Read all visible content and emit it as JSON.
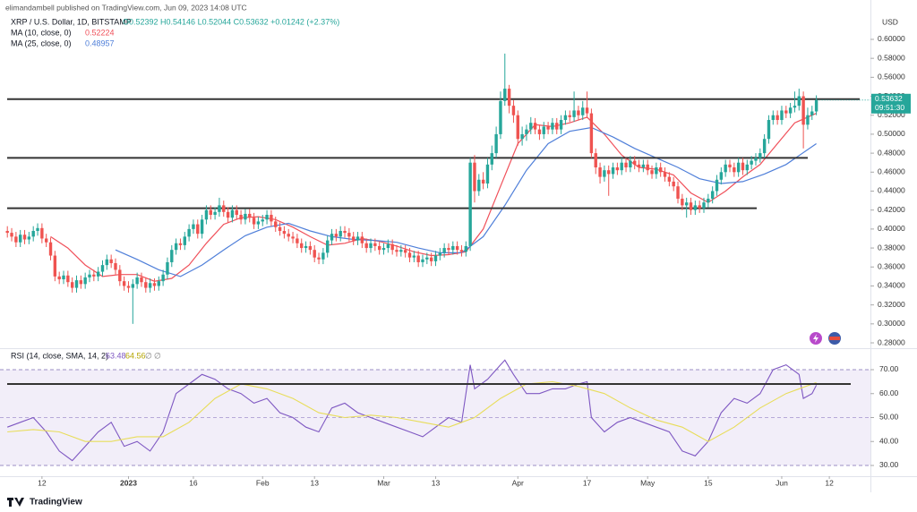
{
  "chart_data": {
    "type": "candlestick",
    "publisher": "elimandambell published on TradingView.com, Jun 09, 2023 14:08 UTC",
    "title": "XRP / U.S. Dollar, 1D, BITSTAMP",
    "ohlc_text": "O0.52392 H0.54146 L0.52044 C0.53632 +0.01242 (+2.37%)",
    "currency": "USD",
    "last_price": "0.53632",
    "countdown": "09:51:30",
    "footer": "TradingView",
    "up_color": "#26a69a",
    "down_color": "#ef5350",
    "xlim": [
      -1.7,
      199.5
    ],
    "xticks": [
      {
        "value": 8,
        "label": "12"
      },
      {
        "value": 28,
        "label": "2023"
      },
      {
        "value": 43,
        "label": "16"
      },
      {
        "value": 59,
        "label": "Feb"
      },
      {
        "value": 71,
        "label": "13"
      },
      {
        "value": 87,
        "label": "Mar"
      },
      {
        "value": 99,
        "label": "13"
      },
      {
        "value": 118,
        "label": "Apr"
      },
      {
        "value": 134,
        "label": "17"
      },
      {
        "value": 148,
        "label": "May"
      },
      {
        "value": 162,
        "label": "15"
      },
      {
        "value": 179,
        "label": "Jun"
      },
      {
        "value": 190,
        "label": "12"
      }
    ],
    "ylim": [
      0.2753,
      0.6415
    ],
    "yticks": [
      {
        "value": 0.28,
        "label": "0.28000"
      },
      {
        "value": 0.3,
        "label": "0.30000"
      },
      {
        "value": 0.32,
        "label": "0.32000"
      },
      {
        "value": 0.34,
        "label": "0.34000"
      },
      {
        "value": 0.36,
        "label": "0.36000"
      },
      {
        "value": 0.38,
        "label": "0.38000"
      },
      {
        "value": 0.4,
        "label": "0.40000"
      },
      {
        "value": 0.42,
        "label": "0.42000"
      },
      {
        "value": 0.44,
        "label": "0.44000"
      },
      {
        "value": 0.46,
        "label": "0.46000"
      },
      {
        "value": 0.48,
        "label": "0.48000"
      },
      {
        "value": 0.5,
        "label": "0.50000"
      },
      {
        "value": 0.52,
        "label": "0.52000"
      },
      {
        "value": 0.54,
        "label": "0.54000"
      },
      {
        "value": 0.56,
        "label": "0.56000"
      },
      {
        "value": 0.58,
        "label": "0.58000"
      },
      {
        "value": 0.6,
        "label": "0.60000"
      }
    ],
    "open": [
      0.398,
      0.396,
      0.392,
      0.386,
      0.394,
      0.389,
      0.392,
      0.398,
      0.401,
      0.39,
      0.386,
      0.372,
      0.35,
      0.347,
      0.351,
      0.344,
      0.338,
      0.346,
      0.342,
      0.349,
      0.352,
      0.35,
      0.355,
      0.362,
      0.368,
      0.364,
      0.357,
      0.345,
      0.34,
      0.338,
      0.342,
      0.349,
      0.344,
      0.338,
      0.343,
      0.34,
      0.345,
      0.352,
      0.365,
      0.378,
      0.385,
      0.383,
      0.392,
      0.4,
      0.405,
      0.395,
      0.41,
      0.42,
      0.415,
      0.418,
      0.425,
      0.418,
      0.412,
      0.42,
      0.415,
      0.41,
      0.416,
      0.412,
      0.405,
      0.408,
      0.41,
      0.415,
      0.408,
      0.402,
      0.398,
      0.395,
      0.392,
      0.39,
      0.385,
      0.38,
      0.382,
      0.378,
      0.37,
      0.368,
      0.375,
      0.388,
      0.395,
      0.392,
      0.398,
      0.396,
      0.392,
      0.388,
      0.392,
      0.385,
      0.38,
      0.385,
      0.382,
      0.378,
      0.38,
      0.384,
      0.378,
      0.376,
      0.378,
      0.375,
      0.37,
      0.372,
      0.365,
      0.368,
      0.37,
      0.366,
      0.372,
      0.375,
      0.38,
      0.378,
      0.382,
      0.378,
      0.376,
      0.382,
      0.47,
      0.44,
      0.452,
      0.448,
      0.468,
      0.48,
      0.5,
      0.535,
      0.548,
      0.53,
      0.52,
      0.495,
      0.5,
      0.505,
      0.512,
      0.505,
      0.5,
      0.508,
      0.505,
      0.512,
      0.505,
      0.515,
      0.52,
      0.518,
      0.525,
      0.52,
      0.528,
      0.522,
      0.48,
      0.465,
      0.455,
      0.462,
      0.458,
      0.465,
      0.462,
      0.47,
      0.465,
      0.472,
      0.468,
      0.465,
      0.468,
      0.462,
      0.458,
      0.465,
      0.46,
      0.455,
      0.45,
      0.445,
      0.432,
      0.425,
      0.428,
      0.42,
      0.425,
      0.422,
      0.428,
      0.432,
      0.44,
      0.452,
      0.46,
      0.468,
      0.465,
      0.46,
      0.47,
      0.462,
      0.468,
      0.472,
      0.475,
      0.48,
      0.495,
      0.515,
      0.52,
      0.515,
      0.525,
      0.522,
      0.528,
      0.53,
      0.54,
      0.51,
      0.52,
      0.524
    ],
    "high": [
      0.403,
      0.401,
      0.397,
      0.399,
      0.399,
      0.397,
      0.403,
      0.406,
      0.406,
      0.395,
      0.391,
      0.377,
      0.355,
      0.356,
      0.356,
      0.349,
      0.351,
      0.351,
      0.354,
      0.357,
      0.357,
      0.36,
      0.367,
      0.373,
      0.373,
      0.369,
      0.362,
      0.35,
      0.345,
      0.347,
      0.354,
      0.354,
      0.349,
      0.348,
      0.348,
      0.35,
      0.357,
      0.37,
      0.383,
      0.39,
      0.39,
      0.397,
      0.405,
      0.41,
      0.41,
      0.415,
      0.425,
      0.425,
      0.423,
      0.433,
      0.43,
      0.423,
      0.425,
      0.425,
      0.42,
      0.421,
      0.421,
      0.417,
      0.413,
      0.415,
      0.42,
      0.42,
      0.413,
      0.407,
      0.403,
      0.4,
      0.397,
      0.395,
      0.39,
      0.387,
      0.387,
      0.383,
      0.375,
      0.38,
      0.393,
      0.4,
      0.4,
      0.403,
      0.403,
      0.401,
      0.397,
      0.397,
      0.397,
      0.39,
      0.39,
      0.39,
      0.387,
      0.385,
      0.389,
      0.389,
      0.383,
      0.383,
      0.383,
      0.38,
      0.377,
      0.377,
      0.373,
      0.375,
      0.375,
      0.377,
      0.38,
      0.385,
      0.385,
      0.387,
      0.387,
      0.383,
      0.387,
      0.475,
      0.478,
      0.458,
      0.46,
      0.475,
      0.488,
      0.508,
      0.545,
      0.585,
      0.552,
      0.536,
      0.525,
      0.508,
      0.51,
      0.518,
      0.517,
      0.51,
      0.513,
      0.513,
      0.517,
      0.517,
      0.52,
      0.525,
      0.525,
      0.545,
      0.53,
      0.535,
      0.545,
      0.527,
      0.485,
      0.47,
      0.467,
      0.467,
      0.47,
      0.47,
      0.475,
      0.475,
      0.477,
      0.477,
      0.473,
      0.473,
      0.473,
      0.467,
      0.47,
      0.47,
      0.465,
      0.46,
      0.455,
      0.45,
      0.437,
      0.433,
      0.433,
      0.43,
      0.43,
      0.433,
      0.437,
      0.445,
      0.457,
      0.465,
      0.473,
      0.473,
      0.47,
      0.475,
      0.475,
      0.473,
      0.477,
      0.48,
      0.485,
      0.5,
      0.52,
      0.525,
      0.525,
      0.53,
      0.53,
      0.533,
      0.545,
      0.548,
      0.545,
      0.528,
      0.53,
      0.541
    ],
    "low": [
      0.391,
      0.387,
      0.381,
      0.381,
      0.384,
      0.384,
      0.387,
      0.393,
      0.385,
      0.381,
      0.367,
      0.345,
      0.342,
      0.342,
      0.339,
      0.333,
      0.333,
      0.337,
      0.337,
      0.344,
      0.345,
      0.345,
      0.35,
      0.357,
      0.359,
      0.352,
      0.34,
      0.335,
      0.333,
      0.3,
      0.337,
      0.339,
      0.333,
      0.333,
      0.335,
      0.335,
      0.34,
      0.347,
      0.36,
      0.373,
      0.378,
      0.378,
      0.387,
      0.395,
      0.39,
      0.39,
      0.405,
      0.41,
      0.41,
      0.413,
      0.413,
      0.407,
      0.407,
      0.41,
      0.405,
      0.405,
      0.407,
      0.4,
      0.4,
      0.403,
      0.405,
      0.403,
      0.397,
      0.393,
      0.39,
      0.387,
      0.385,
      0.38,
      0.375,
      0.375,
      0.373,
      0.365,
      0.363,
      0.363,
      0.37,
      0.383,
      0.387,
      0.387,
      0.391,
      0.387,
      0.383,
      0.383,
      0.38,
      0.375,
      0.375,
      0.377,
      0.373,
      0.373,
      0.375,
      0.373,
      0.371,
      0.371,
      0.37,
      0.365,
      0.365,
      0.36,
      0.36,
      0.363,
      0.361,
      0.361,
      0.367,
      0.37,
      0.373,
      0.373,
      0.373,
      0.371,
      0.371,
      0.377,
      0.428,
      0.435,
      0.442,
      0.443,
      0.462,
      0.475,
      0.495,
      0.53,
      0.522,
      0.512,
      0.488,
      0.488,
      0.493,
      0.5,
      0.5,
      0.494,
      0.495,
      0.5,
      0.5,
      0.5,
      0.5,
      0.51,
      0.513,
      0.513,
      0.515,
      0.515,
      0.517,
      0.475,
      0.458,
      0.448,
      0.45,
      0.435,
      0.453,
      0.457,
      0.457,
      0.46,
      0.46,
      0.463,
      0.46,
      0.46,
      0.457,
      0.453,
      0.453,
      0.455,
      0.45,
      0.445,
      0.44,
      0.427,
      0.42,
      0.412,
      0.415,
      0.415,
      0.417,
      0.417,
      0.423,
      0.427,
      0.435,
      0.447,
      0.455,
      0.46,
      0.455,
      0.455,
      0.457,
      0.457,
      0.463,
      0.467,
      0.47,
      0.475,
      0.49,
      0.51,
      0.51,
      0.51,
      0.517,
      0.517,
      0.523,
      0.525,
      0.485,
      0.505,
      0.515,
      0.52
    ],
    "close": [
      0.396,
      0.392,
      0.386,
      0.394,
      0.389,
      0.392,
      0.398,
      0.401,
      0.39,
      0.386,
      0.372,
      0.35,
      0.347,
      0.351,
      0.344,
      0.338,
      0.346,
      0.342,
      0.349,
      0.352,
      0.35,
      0.355,
      0.362,
      0.368,
      0.364,
      0.357,
      0.345,
      0.34,
      0.338,
      0.342,
      0.349,
      0.344,
      0.338,
      0.343,
      0.34,
      0.345,
      0.352,
      0.365,
      0.378,
      0.385,
      0.383,
      0.392,
      0.4,
      0.405,
      0.395,
      0.41,
      0.42,
      0.415,
      0.418,
      0.425,
      0.418,
      0.412,
      0.42,
      0.415,
      0.41,
      0.416,
      0.412,
      0.405,
      0.408,
      0.41,
      0.415,
      0.408,
      0.402,
      0.398,
      0.395,
      0.392,
      0.39,
      0.385,
      0.38,
      0.382,
      0.378,
      0.37,
      0.368,
      0.375,
      0.388,
      0.395,
      0.392,
      0.398,
      0.396,
      0.392,
      0.388,
      0.392,
      0.385,
      0.38,
      0.385,
      0.382,
      0.378,
      0.38,
      0.384,
      0.378,
      0.376,
      0.378,
      0.375,
      0.37,
      0.372,
      0.365,
      0.368,
      0.37,
      0.366,
      0.372,
      0.375,
      0.38,
      0.378,
      0.382,
      0.378,
      0.376,
      0.382,
      0.47,
      0.44,
      0.452,
      0.448,
      0.468,
      0.48,
      0.5,
      0.535,
      0.548,
      0.53,
      0.52,
      0.495,
      0.5,
      0.505,
      0.512,
      0.505,
      0.5,
      0.508,
      0.505,
      0.512,
      0.505,
      0.515,
      0.52,
      0.518,
      0.525,
      0.52,
      0.528,
      0.522,
      0.48,
      0.465,
      0.455,
      0.462,
      0.458,
      0.465,
      0.462,
      0.47,
      0.465,
      0.472,
      0.468,
      0.465,
      0.468,
      0.462,
      0.458,
      0.465,
      0.46,
      0.455,
      0.45,
      0.445,
      0.432,
      0.425,
      0.428,
      0.42,
      0.425,
      0.422,
      0.428,
      0.432,
      0.44,
      0.452,
      0.46,
      0.468,
      0.465,
      0.46,
      0.47,
      0.462,
      0.468,
      0.472,
      0.475,
      0.48,
      0.495,
      0.515,
      0.52,
      0.515,
      0.525,
      0.522,
      0.528,
      0.53,
      0.54,
      0.51,
      0.52,
      0.524,
      0.536
    ],
    "overlays": [
      {
        "name": "MA (10, close, 0)",
        "value_text": "0.52224",
        "color": "#f0505a",
        "x": [
          10,
          14,
          18,
          22,
          26,
          30,
          34,
          38,
          42,
          46,
          50,
          54,
          58,
          62,
          66,
          70,
          74,
          78,
          82,
          86,
          90,
          94,
          98,
          102,
          106,
          110,
          114,
          118,
          122,
          126,
          130,
          134,
          138,
          142,
          146,
          150,
          154,
          158,
          162,
          166,
          170,
          174,
          178,
          182,
          187
        ],
        "values": [
          0.392,
          0.38,
          0.362,
          0.35,
          0.352,
          0.352,
          0.345,
          0.348,
          0.362,
          0.385,
          0.405,
          0.412,
          0.413,
          0.41,
          0.402,
          0.392,
          0.383,
          0.385,
          0.39,
          0.387,
          0.382,
          0.376,
          0.372,
          0.373,
          0.376,
          0.4,
          0.445,
          0.49,
          0.51,
          0.508,
          0.512,
          0.518,
          0.5,
          0.478,
          0.465,
          0.463,
          0.457,
          0.438,
          0.428,
          0.44,
          0.455,
          0.468,
          0.49,
          0.512,
          0.522
        ]
      },
      {
        "name": "MA (25, close, 0)",
        "value_text": "0.48957",
        "color": "#4f7fd9",
        "x": [
          25,
          30,
          35,
          40,
          45,
          50,
          55,
          60,
          65,
          70,
          75,
          80,
          85,
          90,
          95,
          100,
          105,
          110,
          115,
          120,
          125,
          130,
          135,
          140,
          145,
          150,
          155,
          160,
          165,
          170,
          175,
          180,
          187
        ],
        "values": [
          0.378,
          0.368,
          0.357,
          0.35,
          0.362,
          0.378,
          0.393,
          0.402,
          0.406,
          0.398,
          0.392,
          0.389,
          0.388,
          0.386,
          0.38,
          0.375,
          0.375,
          0.392,
          0.425,
          0.462,
          0.49,
          0.503,
          0.507,
          0.497,
          0.485,
          0.475,
          0.465,
          0.453,
          0.448,
          0.45,
          0.458,
          0.468,
          0.49
        ]
      }
    ],
    "levels": [
      0.537,
      0.475,
      0.422
    ],
    "level_color": "#333333",
    "rsi": {
      "name": "RSI (14, close, SMA, 14, 2)",
      "readout": [
        "63.48",
        "64.56",
        "∅",
        "∅"
      ],
      "ylim": [
        26.26,
        77.85
      ],
      "yticks": [
        {
          "value": 30,
          "label": "30.00"
        },
        {
          "value": 40,
          "label": "40.00"
        },
        {
          "value": 50,
          "label": "50.00"
        },
        {
          "value": 60,
          "label": "60.00"
        },
        {
          "value": 70,
          "label": "70.00"
        }
      ],
      "band": [
        30,
        70
      ],
      "midline": 50,
      "level": 64,
      "series": [
        {
          "name": "RSI",
          "color": "#7e57c2",
          "x": [
            0,
            3,
            6,
            9,
            12,
            15,
            18,
            21,
            24,
            27,
            30,
            33,
            36,
            39,
            42,
            45,
            48,
            51,
            54,
            57,
            60,
            63,
            66,
            69,
            72,
            75,
            78,
            81,
            84,
            87,
            90,
            93,
            96,
            99,
            102,
            105,
            107,
            108,
            111,
            114,
            115,
            117,
            120,
            123,
            126,
            129,
            132,
            134,
            135,
            138,
            141,
            144,
            147,
            150,
            153,
            156,
            159,
            162,
            165,
            168,
            171,
            174,
            177,
            180,
            183,
            184,
            186,
            187
          ],
          "values": [
            46,
            48,
            50,
            44,
            36,
            32,
            38,
            44,
            48,
            38,
            40,
            36,
            44,
            60,
            64,
            68,
            66,
            62,
            60,
            56,
            58,
            52,
            50,
            46,
            44,
            54,
            56,
            52,
            50,
            48,
            46,
            44,
            42,
            46,
            50,
            48,
            72,
            62,
            66,
            72,
            74,
            68,
            60,
            60,
            62,
            62,
            64,
            65,
            50,
            44,
            48,
            50,
            48,
            46,
            44,
            36,
            34,
            40,
            52,
            58,
            56,
            60,
            70,
            72,
            68,
            58,
            60,
            63.5
          ]
        },
        {
          "name": "RSI-based MA",
          "color": "#e8dd5a",
          "x": [
            0,
            6,
            12,
            18,
            24,
            30,
            36,
            42,
            48,
            54,
            60,
            66,
            72,
            78,
            84,
            90,
            96,
            102,
            108,
            114,
            120,
            126,
            132,
            138,
            144,
            150,
            156,
            162,
            168,
            174,
            180,
            187
          ],
          "values": [
            44,
            45,
            44,
            40,
            40,
            42,
            42,
            48,
            58,
            64,
            62,
            58,
            52,
            50,
            51,
            50,
            48,
            46,
            50,
            58,
            64,
            65,
            63,
            60,
            54,
            49,
            46,
            40,
            46,
            54,
            60,
            64.6
          ]
        }
      ]
    }
  }
}
